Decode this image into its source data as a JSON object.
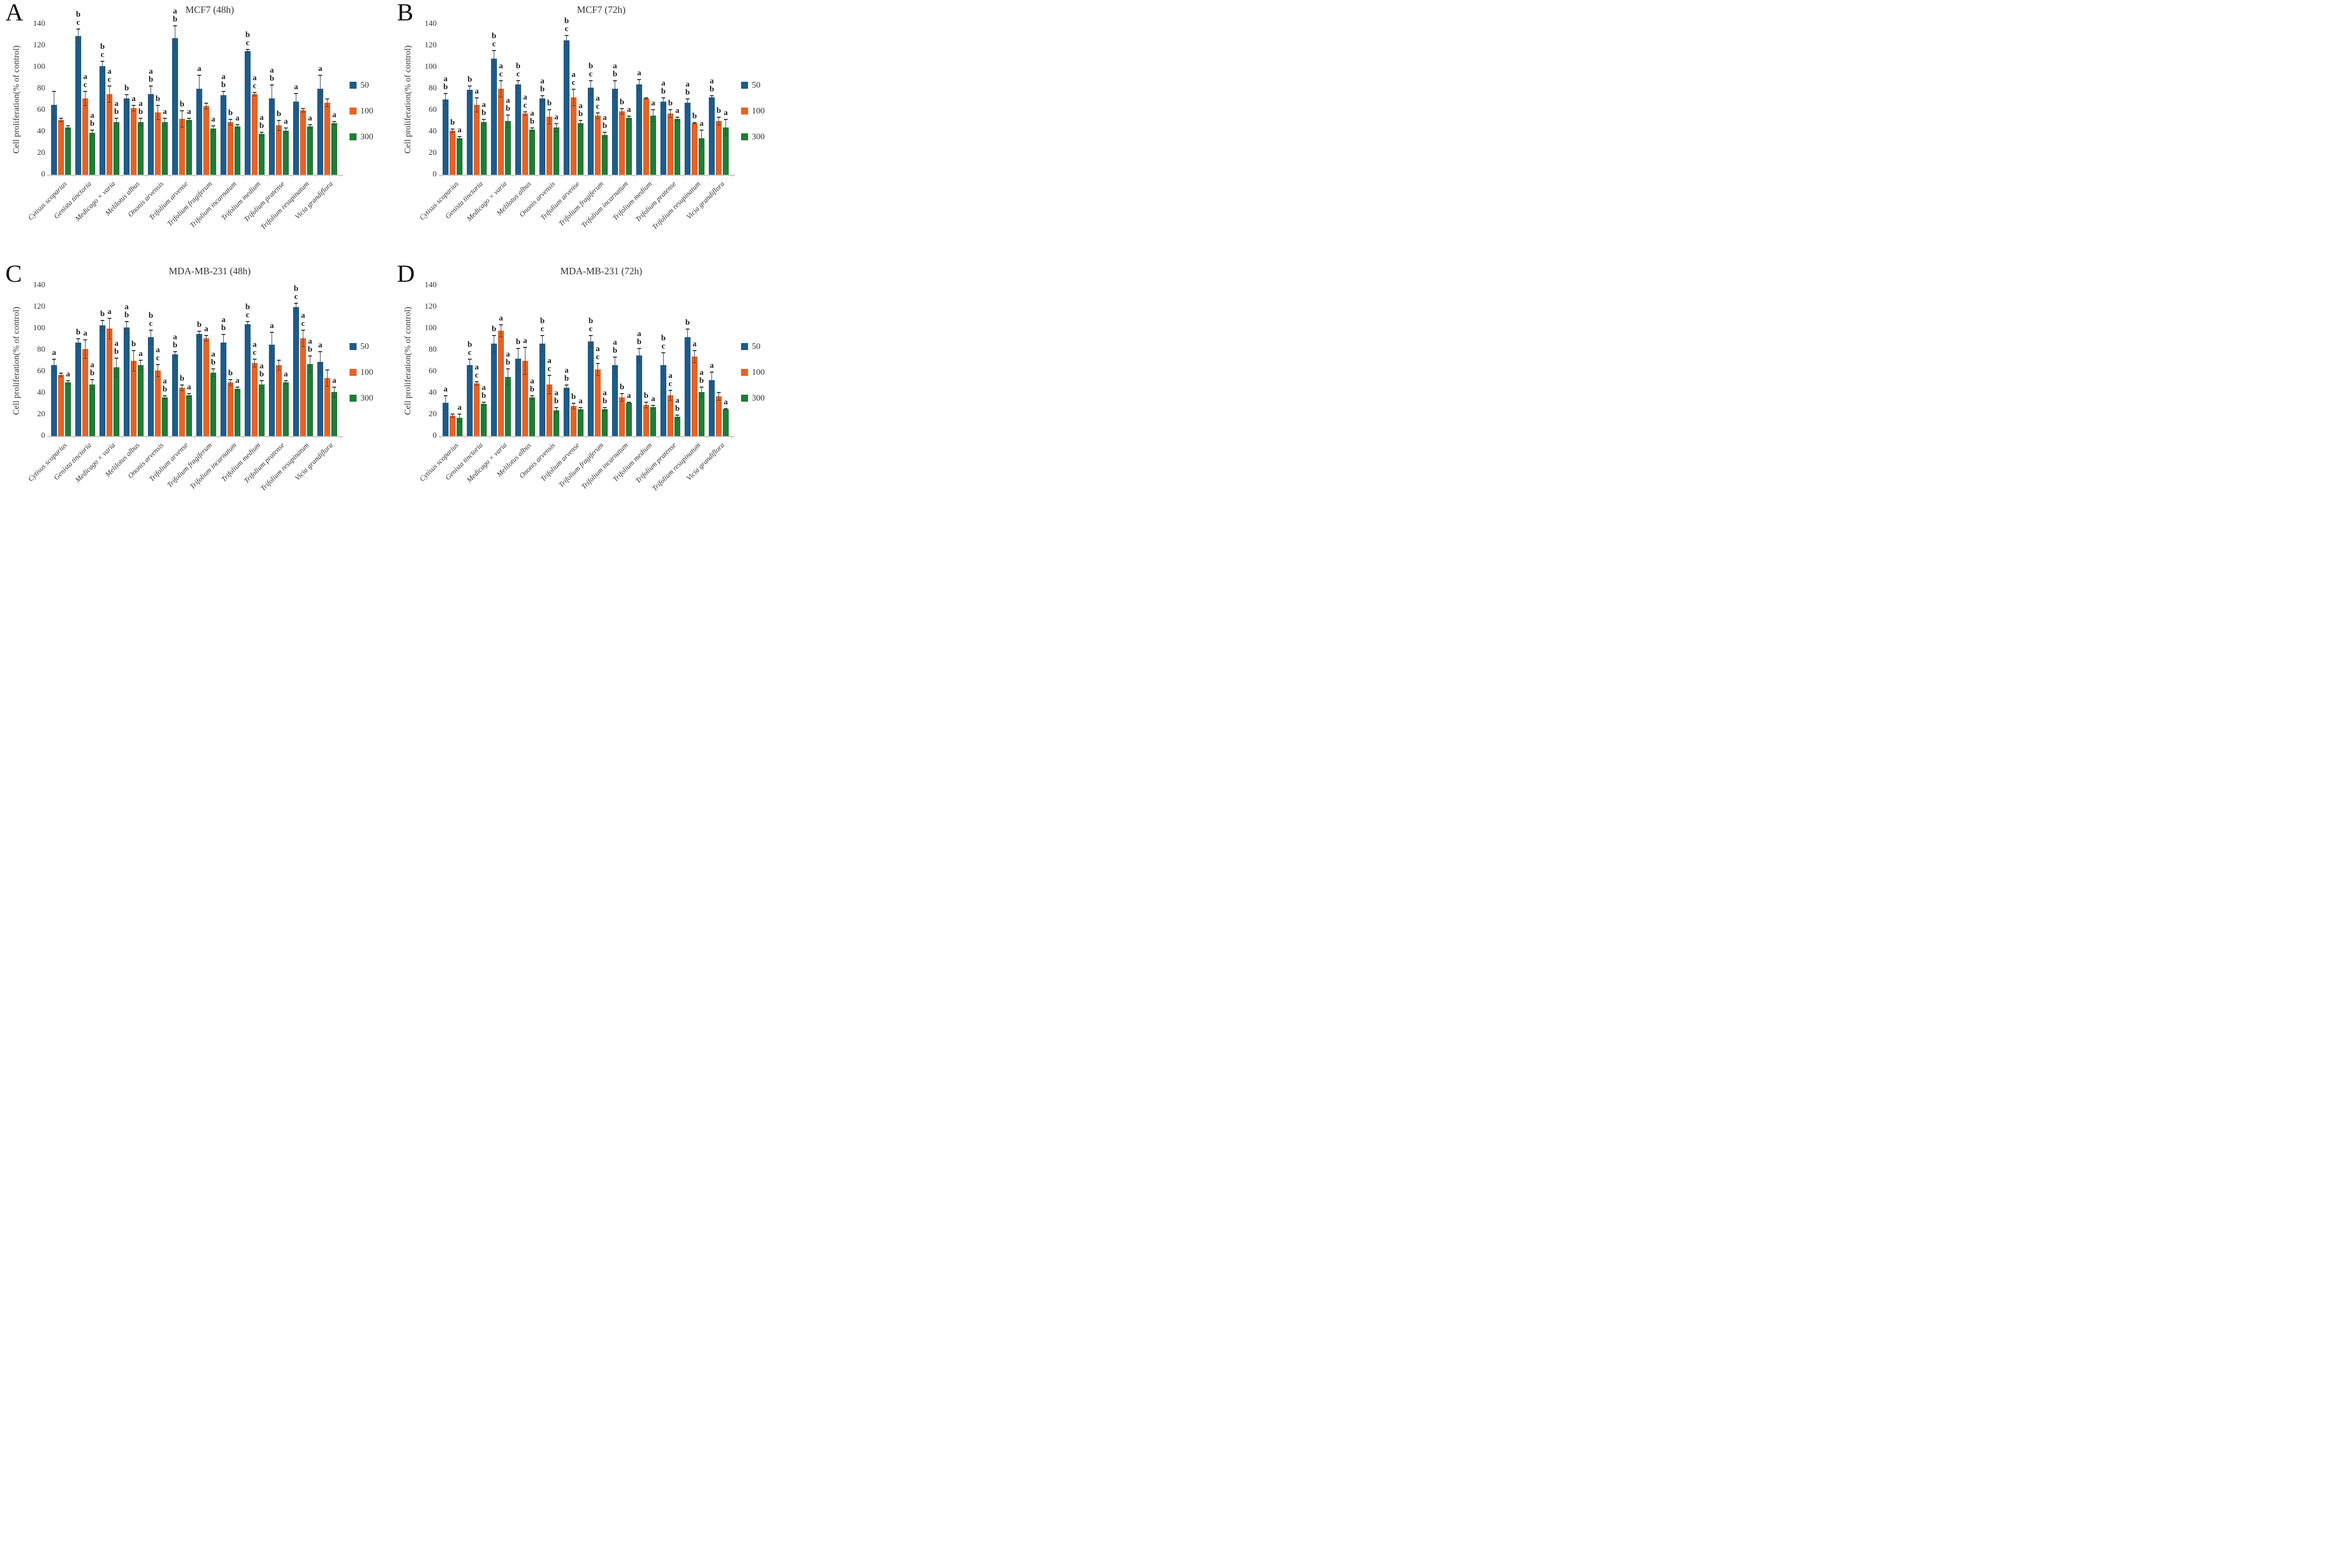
{
  "panel_letters": [
    "A",
    "B",
    "C",
    "D"
  ],
  "y_axis": {
    "label": "Cell proliferation(% of control)",
    "ticks": [
      0,
      20,
      40,
      60,
      80,
      100,
      120,
      140
    ]
  },
  "legend": {
    "items": [
      {
        "label": "50",
        "color": "#1e5c8a"
      },
      {
        "label": "100",
        "color": "#e86224"
      },
      {
        "label": "300",
        "color": "#1f7d37"
      }
    ]
  },
  "colors": {
    "error_bar": "#3f3f3f",
    "axis_line": "#c9c9c9"
  },
  "chart_data": [
    {
      "type": "bar",
      "panel": "A",
      "title": "MCF7 (48h)",
      "ylabel": "Cell proliferation(% of control)",
      "ylim": [
        0,
        140
      ],
      "yticks": [
        0,
        20,
        40,
        60,
        80,
        100,
        120,
        140
      ],
      "legend_position": "right",
      "categories": [
        "Cytisus scoparius",
        "Genista tinctoria",
        "Medicago × varia",
        "Melilotus albus",
        "Ononis arvensis",
        "Trifolium arvense",
        "Trifolium fragiferum",
        "Trifolium incarnatum",
        "Trifolium medium",
        "Trifolium pratense",
        "Trifolium resupinatum",
        "Vicia grandiflora"
      ],
      "series": [
        {
          "name": "50",
          "color": "#1e5c8a",
          "values": [
            65,
            129,
            101,
            71,
            75,
            127,
            80,
            74,
            115,
            71,
            68,
            80
          ],
          "errors": [
            13,
            7,
            5,
            4,
            8,
            12,
            13,
            4,
            2,
            13,
            8,
            13
          ],
          "letters": [
            [],
            [
              "b",
              "c"
            ],
            [
              "b",
              "c"
            ],
            [
              "b"
            ],
            [
              "a",
              "b"
            ],
            [
              "a",
              "b"
            ],
            [
              "a"
            ],
            [
              "a",
              "b"
            ],
            [
              "b",
              "c"
            ],
            [
              "a",
              "b"
            ],
            [
              "a"
            ],
            [
              "a"
            ]
          ]
        },
        {
          "name": "100",
          "color": "#e86224",
          "values": [
            51,
            71,
            75,
            62,
            58,
            52,
            64,
            49,
            75,
            46,
            60,
            67
          ],
          "errors": [
            2,
            7,
            8,
            3,
            7,
            8,
            3,
            3,
            2,
            5,
            2,
            4
          ],
          "letters": [
            [],
            [
              "a",
              "c"
            ],
            [
              "a",
              "c"
            ],
            [
              "a"
            ],
            [
              "b"
            ],
            [
              "b"
            ],
            [],
            [
              "b"
            ],
            [
              "a",
              "c"
            ],
            [
              "b"
            ],
            [],
            []
          ]
        },
        {
          "name": "300",
          "color": "#1f7d37",
          "values": [
            44,
            39,
            49,
            49,
            49,
            51,
            43,
            45,
            38,
            41,
            45,
            48
          ],
          "errors": [
            2,
            3,
            4,
            4,
            4,
            2,
            3,
            2,
            2,
            3,
            2,
            2
          ],
          "letters": [
            [],
            [
              "a",
              "b"
            ],
            [
              "a",
              "b"
            ],
            [
              "a",
              "b"
            ],
            [
              "a"
            ],
            [
              "a"
            ],
            [
              "a"
            ],
            [
              "a"
            ],
            [
              "a",
              "b"
            ],
            [
              "a"
            ],
            [
              "a"
            ],
            [
              "a"
            ]
          ]
        }
      ]
    },
    {
      "type": "bar",
      "panel": "B",
      "title": "MCF7 (72h)",
      "ylabel": "Cell proliferation(% of control)",
      "ylim": [
        0,
        140
      ],
      "yticks": [
        0,
        20,
        40,
        60,
        80,
        100,
        120,
        140
      ],
      "legend_position": "right",
      "categories": [
        "Cytisus scoparius",
        "Genista tinctoria",
        "Medicago × varia",
        "Melilotus albus",
        "Ononis arvensis",
        "Trifolium arvense",
        "Trifolium fragiferum",
        "Trifolium incarnatum",
        "Trifolium medium",
        "Trifolium pratense",
        "Trifolium resupinatum",
        "Vicia grandiflora"
      ],
      "series": [
        {
          "name": "50",
          "color": "#1e5c8a",
          "values": [
            70,
            79,
            108,
            84,
            71,
            125,
            81,
            80,
            84,
            68,
            67,
            72
          ],
          "errors": [
            6,
            4,
            8,
            4,
            3,
            5,
            7,
            8,
            5,
            4,
            4,
            2
          ],
          "letters": [
            [
              "a",
              "b"
            ],
            [
              "b"
            ],
            [
              "b",
              "c"
            ],
            [
              "b",
              "c"
            ],
            [
              "a",
              "b"
            ],
            [
              "b",
              "c"
            ],
            [
              "b",
              "c"
            ],
            [
              "a",
              "b"
            ],
            [
              "a"
            ],
            [
              "a",
              "b"
            ],
            [
              "a",
              "b"
            ],
            [
              "a",
              "b"
            ]
          ]
        },
        {
          "name": "100",
          "color": "#e86224",
          "values": [
            41,
            65,
            80,
            57,
            54,
            72,
            55,
            59,
            71,
            57,
            48,
            50
          ],
          "errors": [
            2,
            7,
            8,
            2,
            7,
            8,
            3,
            3,
            1,
            4,
            1,
            4
          ],
          "letters": [
            [
              "b"
            ],
            [
              "a"
            ],
            [
              "a",
              "c"
            ],
            [
              "a",
              "c"
            ],
            [
              "b"
            ],
            [
              "a",
              "c"
            ],
            [
              "a",
              "c"
            ],
            [
              "b"
            ],
            [],
            [
              "b"
            ],
            [
              "b"
            ],
            [
              "b"
            ]
          ]
        },
        {
          "name": "300",
          "color": "#1f7d37",
          "values": [
            34,
            49,
            50,
            42,
            44,
            48,
            37,
            53,
            55,
            52,
            34,
            44
          ],
          "errors": [
            2,
            3,
            6,
            2,
            4,
            3,
            3,
            2,
            6,
            2,
            8,
            8
          ],
          "letters": [
            [
              "a"
            ],
            [
              "a",
              "b"
            ],
            [
              "a",
              "b"
            ],
            [
              "a",
              "b"
            ],
            [
              "a"
            ],
            [
              "a",
              "b"
            ],
            [
              "a",
              "b"
            ],
            [
              "a"
            ],
            [
              "a"
            ],
            [
              "a"
            ],
            [
              "a"
            ],
            [
              "a"
            ]
          ]
        }
      ]
    },
    {
      "type": "bar",
      "panel": "C",
      "title": "MDA-MB-231 (48h)",
      "ylabel": "Cell proliferation(% of control)",
      "ylim": [
        0,
        140
      ],
      "yticks": [
        0,
        20,
        40,
        60,
        80,
        100,
        120,
        140
      ],
      "legend_position": "right",
      "categories": [
        "Cytisus scoparius",
        "Genista tinctoria",
        "Medicago × varia",
        "Melilotus albus",
        "Ononis arvensis",
        "Trifolium arvense",
        "Trifolium fragiferum",
        "Trifolium incarnatum",
        "Trifolium medium",
        "Trifolium pratense",
        "Trifolium resupinatum",
        "Vicia grandiflora"
      ],
      "series": [
        {
          "name": "50",
          "color": "#1e5c8a",
          "values": [
            66,
            87,
            103,
            101,
            92,
            76,
            95,
            87,
            104,
            85,
            120,
            69
          ],
          "errors": [
            6,
            4,
            5,
            6,
            7,
            3,
            3,
            8,
            3,
            12,
            4,
            10
          ],
          "letters": [
            [
              "a"
            ],
            [
              "b"
            ],
            [
              "b"
            ],
            [
              "a",
              "b"
            ],
            [
              "b",
              "c"
            ],
            [
              "a",
              "b"
            ],
            [
              "b"
            ],
            [
              "a",
              "b"
            ],
            [
              "b",
              "c"
            ],
            [
              "a"
            ],
            [
              "b",
              "c"
            ],
            [
              "a"
            ]
          ]
        },
        {
          "name": "100",
          "color": "#e86224",
          "values": [
            57,
            81,
            100,
            70,
            61,
            45,
            91,
            50,
            68,
            66,
            91,
            54
          ],
          "errors": [
            2,
            9,
            10,
            10,
            6,
            3,
            3,
            3,
            4,
            5,
            8,
            8
          ],
          "letters": [
            [],
            [
              "a"
            ],
            [
              "a"
            ],
            [
              "b"
            ],
            [
              "a",
              "c"
            ],
            [
              "b"
            ],
            [
              "a"
            ],
            [
              "b"
            ],
            [
              "a",
              "c"
            ],
            [],
            [
              "a",
              "c"
            ],
            []
          ]
        },
        {
          "name": "300",
          "color": "#1f7d37",
          "values": [
            50,
            48,
            64,
            66,
            36,
            38,
            59,
            44,
            48,
            50,
            67,
            41
          ],
          "errors": [
            2,
            5,
            9,
            5,
            2,
            2,
            4,
            2,
            4,
            2,
            8,
            5
          ],
          "letters": [
            [
              "a"
            ],
            [
              "a",
              "b"
            ],
            [
              "a",
              "b"
            ],
            [
              "a"
            ],
            [
              "a",
              "b"
            ],
            [
              "a"
            ],
            [
              "a",
              "b"
            ],
            [
              "a"
            ],
            [
              "a",
              "b"
            ],
            [
              "a"
            ],
            [
              "a",
              "b"
            ],
            [
              "a"
            ]
          ]
        }
      ]
    },
    {
      "type": "bar",
      "panel": "D",
      "title": "MDA-MB-231 (72h)",
      "ylabel": "Cell proliferation(% of control)",
      "ylim": [
        0,
        140
      ],
      "yticks": [
        0,
        20,
        40,
        60,
        80,
        100,
        120,
        140
      ],
      "legend_position": "right",
      "categories": [
        "Cytisus scoparius",
        "Genista tinctoria",
        "Medicago × varia",
        "Melilotus albus",
        "Ononis arvensis",
        "Trifolium arvense",
        "Trifolium fragiferum",
        "Trifolium incarnatum",
        "Trifolium medium",
        "Trifolium pratense",
        "Trifolium resupinatum",
        "Vicia grandiflora"
      ],
      "series": [
        {
          "name": "50",
          "color": "#1e5c8a",
          "values": [
            31,
            66,
            86,
            72,
            86,
            45,
            88,
            66,
            75,
            66,
            92,
            52
          ],
          "errors": [
            7,
            6,
            8,
            10,
            8,
            3,
            6,
            8,
            7,
            12,
            8,
            8
          ],
          "letters": [
            [
              "a"
            ],
            [
              "b",
              "c"
            ],
            [
              "b"
            ],
            [
              "b"
            ],
            [
              "b",
              "c"
            ],
            [
              "a",
              "b"
            ],
            [
              "b",
              "c"
            ],
            [
              "a",
              "b"
            ],
            [
              "a",
              "b"
            ],
            [
              "b",
              "c"
            ],
            [
              "b"
            ],
            [
              "a"
            ]
          ]
        },
        {
          "name": "100",
          "color": "#e86224",
          "values": [
            19,
            49,
            98,
            70,
            48,
            28,
            62,
            36,
            29,
            38,
            74,
            37
          ],
          "errors": [
            2,
            2,
            6,
            13,
            9,
            3,
            6,
            4,
            3,
            5,
            6,
            4
          ],
          "letters": [
            [],
            [
              "a",
              "c"
            ],
            [
              "a"
            ],
            [
              "a"
            ],
            [
              "a",
              "c"
            ],
            [
              "b"
            ],
            [
              "a",
              "c"
            ],
            [
              "b"
            ],
            [
              "b"
            ],
            [
              "a",
              "c"
            ],
            [
              "a"
            ],
            []
          ]
        },
        {
          "name": "300",
          "color": "#1f7d37",
          "values": [
            17,
            30,
            55,
            36,
            24,
            25,
            25,
            31,
            27,
            18,
            41,
            25
          ],
          "errors": [
            4,
            2,
            8,
            2,
            3,
            2,
            2,
            1,
            2,
            2,
            5,
            1
          ],
          "letters": [
            [
              "a"
            ],
            [
              "a",
              "b"
            ],
            [
              "a",
              "b"
            ],
            [
              "a",
              "b"
            ],
            [
              "a",
              "b"
            ],
            [
              "a"
            ],
            [
              "a",
              "b"
            ],
            [
              "a"
            ],
            [
              "a"
            ],
            [
              "a",
              "b"
            ],
            [
              "a",
              "b"
            ],
            [
              "a"
            ]
          ]
        }
      ]
    }
  ]
}
